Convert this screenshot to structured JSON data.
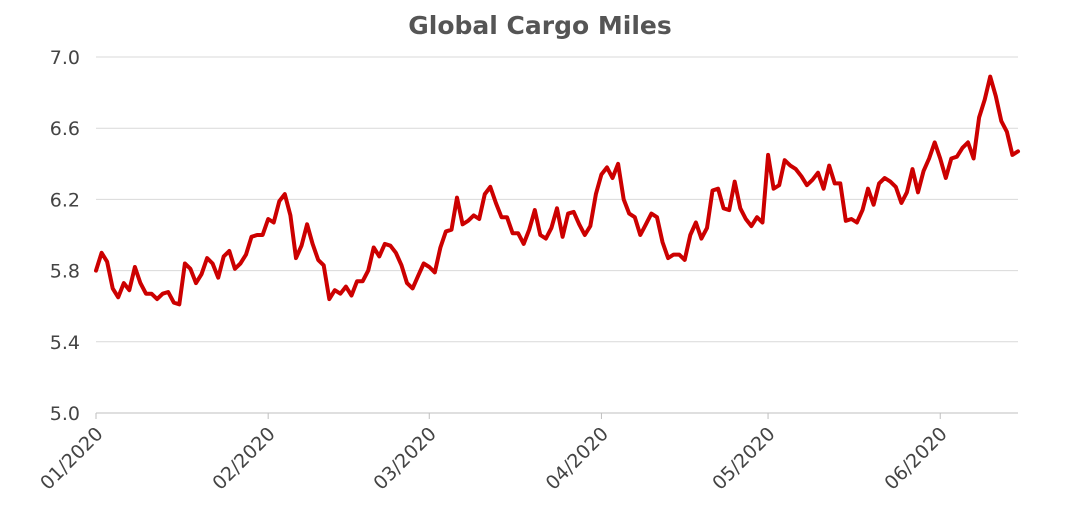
{
  "chart_data": {
    "type": "line",
    "title": "Global Cargo Miles",
    "xlabel": "",
    "ylabel": "",
    "ylim": [
      5.0,
      7.0
    ],
    "yticks": [
      "5.0",
      "5.4",
      "5.8",
      "6.2",
      "6.6",
      "7.0"
    ],
    "xticks": [
      "01/2020",
      "02/2020",
      "03/2020",
      "04/2020",
      "05/2020",
      "06/2020"
    ],
    "xrange": [
      "2020-01-01",
      "2020-06-15"
    ],
    "grid": true,
    "line_color": "#cc0000",
    "series": [
      {
        "x": [
          "2020-01-01",
          "2020-01-02",
          "2020-01-03",
          "2020-01-04",
          "2020-01-05",
          "2020-01-06",
          "2020-01-07",
          "2020-01-08",
          "2020-01-09",
          "2020-01-10",
          "2020-01-11",
          "2020-01-12",
          "2020-01-13",
          "2020-01-14",
          "2020-01-15",
          "2020-01-16",
          "2020-01-17",
          "2020-01-18",
          "2020-01-19",
          "2020-01-20",
          "2020-01-21",
          "2020-01-22",
          "2020-01-23",
          "2020-01-24",
          "2020-01-25",
          "2020-01-26",
          "2020-01-27",
          "2020-01-28",
          "2020-01-29",
          "2020-01-30",
          "2020-01-31",
          "2020-02-01",
          "2020-02-02",
          "2020-02-03",
          "2020-02-04",
          "2020-02-05",
          "2020-02-06",
          "2020-02-07",
          "2020-02-08",
          "2020-02-09",
          "2020-02-10",
          "2020-02-11",
          "2020-02-12",
          "2020-02-13",
          "2020-02-14",
          "2020-02-15",
          "2020-02-16",
          "2020-02-17",
          "2020-02-18",
          "2020-02-19",
          "2020-02-20",
          "2020-02-21",
          "2020-02-22",
          "2020-02-23",
          "2020-02-24",
          "2020-02-25",
          "2020-02-26",
          "2020-02-27",
          "2020-02-28",
          "2020-02-29",
          "2020-03-01",
          "2020-03-02",
          "2020-03-03",
          "2020-03-04",
          "2020-03-05",
          "2020-03-06",
          "2020-03-07",
          "2020-03-08",
          "2020-03-09",
          "2020-03-10",
          "2020-03-11",
          "2020-03-12",
          "2020-03-13",
          "2020-03-14",
          "2020-03-15",
          "2020-03-16",
          "2020-03-17",
          "2020-03-18",
          "2020-03-19",
          "2020-03-20",
          "2020-03-21",
          "2020-03-22",
          "2020-03-23",
          "2020-03-24",
          "2020-03-25",
          "2020-03-26",
          "2020-03-27",
          "2020-03-28",
          "2020-03-29",
          "2020-03-30",
          "2020-03-31",
          "2020-04-01",
          "2020-04-02",
          "2020-04-03",
          "2020-04-04",
          "2020-04-05",
          "2020-04-06",
          "2020-04-07",
          "2020-04-08",
          "2020-04-09",
          "2020-04-10",
          "2020-04-11",
          "2020-04-12",
          "2020-04-13",
          "2020-04-14",
          "2020-04-15",
          "2020-04-16",
          "2020-04-17",
          "2020-04-18",
          "2020-04-19",
          "2020-04-20",
          "2020-04-21",
          "2020-04-22",
          "2020-04-23",
          "2020-04-24",
          "2020-04-25",
          "2020-04-26",
          "2020-04-27",
          "2020-04-28",
          "2020-04-29",
          "2020-04-30",
          "2020-05-01",
          "2020-05-02",
          "2020-05-03",
          "2020-05-04",
          "2020-05-05",
          "2020-05-06",
          "2020-05-07",
          "2020-05-08",
          "2020-05-09",
          "2020-05-10",
          "2020-05-11",
          "2020-05-12",
          "2020-05-13",
          "2020-05-14",
          "2020-05-15",
          "2020-05-16",
          "2020-05-17",
          "2020-05-18",
          "2020-05-19",
          "2020-05-20",
          "2020-05-21",
          "2020-05-22",
          "2020-05-23",
          "2020-05-24",
          "2020-05-25",
          "2020-05-26",
          "2020-05-27",
          "2020-05-28",
          "2020-05-29",
          "2020-05-30",
          "2020-05-31",
          "2020-06-01",
          "2020-06-02",
          "2020-06-03",
          "2020-06-04",
          "2020-06-05",
          "2020-06-06",
          "2020-06-07",
          "2020-06-08",
          "2020-06-09",
          "2020-06-10",
          "2020-06-11",
          "2020-06-12",
          "2020-06-13",
          "2020-06-14",
          "2020-06-15"
        ],
        "y": [
          5.8,
          5.9,
          5.85,
          5.7,
          5.65,
          5.73,
          5.69,
          5.82,
          5.73,
          5.67,
          5.67,
          5.64,
          5.67,
          5.68,
          5.62,
          5.61,
          5.84,
          5.81,
          5.73,
          5.78,
          5.87,
          5.84,
          5.76,
          5.88,
          5.91,
          5.81,
          5.84,
          5.89,
          5.99,
          6.0,
          6.0,
          6.09,
          6.07,
          6.19,
          6.23,
          6.11,
          5.87,
          5.94,
          6.06,
          5.95,
          5.86,
          5.83,
          5.64,
          5.69,
          5.67,
          5.71,
          5.66,
          5.74,
          5.74,
          5.8,
          5.93,
          5.88,
          5.95,
          5.94,
          5.9,
          5.83,
          5.73,
          5.7,
          5.77,
          5.84,
          5.82,
          5.79,
          5.93,
          6.02,
          6.03,
          6.21,
          6.06,
          6.08,
          6.11,
          6.09,
          6.23,
          6.27,
          6.18,
          6.1,
          6.1,
          6.01,
          6.01,
          5.95,
          6.03,
          6.14,
          6.0,
          5.98,
          6.04,
          6.15,
          5.99,
          6.12,
          6.13,
          6.06,
          6.0,
          6.05,
          6.23,
          6.34,
          6.38,
          6.32,
          6.4,
          6.2,
          6.12,
          6.1,
          6.0,
          6.06,
          6.12,
          6.1,
          5.96,
          5.87,
          5.89,
          5.89,
          5.86,
          6.0,
          6.07,
          5.98,
          6.04,
          6.25,
          6.26,
          6.15,
          6.14,
          6.3,
          6.15,
          6.09,
          6.05,
          6.1,
          6.07,
          6.45,
          6.26,
          6.28,
          6.42,
          6.39,
          6.37,
          6.33,
          6.28,
          6.31,
          6.35,
          6.26,
          6.39,
          6.29,
          6.29,
          6.08,
          6.09,
          6.07,
          6.14,
          6.26,
          6.17,
          6.29,
          6.32,
          6.3,
          6.27,
          6.18,
          6.24,
          6.37,
          6.24,
          6.36,
          6.43,
          6.52,
          6.43,
          6.32,
          6.43,
          6.44,
          6.49,
          6.52,
          6.43,
          6.66,
          6.76,
          6.89,
          6.78,
          6.64,
          6.58,
          6.45,
          6.47
        ]
      }
    ]
  }
}
